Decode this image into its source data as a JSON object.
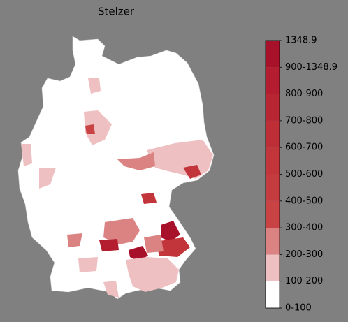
{
  "title": "Stelzer",
  "colorbar": {
    "labels": [
      "0-100",
      "100-200",
      "200-300",
      "300-400",
      "400-500",
      "500-600",
      "600-700",
      "700-800",
      "800-900",
      "900-1348.9",
      "1348.9"
    ],
    "colors": [
      "#ffffff",
      "#efc0c2",
      "#db8383",
      "#c94344",
      "#c53c40",
      "#c1353b",
      "#bd2e37",
      "#b82533",
      "#b31d2f",
      "#a7112a"
    ]
  }
}
